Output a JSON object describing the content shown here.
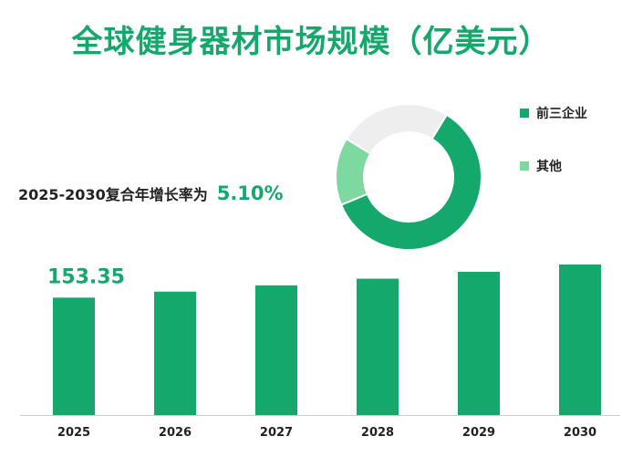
{
  "title": "全球健身器材市场规模（亿美元）",
  "cagr": {
    "label": "2025-2030复合年增长率为",
    "value": "5.10%"
  },
  "colors": {
    "brand": "#14a86d",
    "other": "#7dd9a0",
    "rest": "#eeeeee"
  },
  "chart_data": [
    {
      "type": "bar",
      "categories": [
        "2025",
        "2026",
        "2027",
        "2028",
        "2029",
        "2030"
      ],
      "values": [
        153.35,
        161.2,
        169.4,
        178.1,
        187.1,
        196.6
      ],
      "data_labels": [
        "153.35",
        "",
        "",
        "",
        "",
        ""
      ],
      "ylim": [
        0,
        200
      ]
    },
    {
      "type": "pie",
      "labels": [
        "前三企业",
        "其他",
        ""
      ],
      "values": [
        60,
        15,
        25
      ]
    }
  ]
}
